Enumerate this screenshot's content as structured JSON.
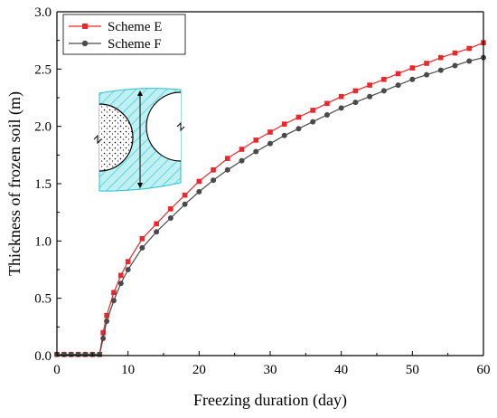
{
  "chart_data": {
    "type": "line",
    "title": "",
    "xlabel": "Freezing duration (day)",
    "ylabel": "Thickness of frozen soil (m)",
    "xlim": [
      0,
      60
    ],
    "ylim": [
      0,
      3.0
    ],
    "xticks": [
      "0",
      "10",
      "20",
      "30",
      "40",
      "50",
      "60"
    ],
    "yticks": [
      "0.0",
      "0.5",
      "1.0",
      "1.5",
      "2.0",
      "2.5",
      "3.0"
    ],
    "grid": false,
    "legend_position": "top-left",
    "series": [
      {
        "name": "Scheme E",
        "color": "#e8282b",
        "marker": "square",
        "x": [
          0,
          1,
          2,
          3,
          4,
          5,
          6,
          6.5,
          7,
          8,
          9,
          10,
          12,
          14,
          16,
          18,
          20,
          22,
          24,
          26,
          28,
          30,
          32,
          34,
          36,
          38,
          40,
          42,
          44,
          46,
          48,
          50,
          52,
          54,
          56,
          58,
          60
        ],
        "values": [
          0.01,
          0.01,
          0.01,
          0.01,
          0.01,
          0.01,
          0.01,
          0.2,
          0.35,
          0.55,
          0.7,
          0.82,
          1.02,
          1.15,
          1.28,
          1.4,
          1.52,
          1.62,
          1.72,
          1.8,
          1.88,
          1.95,
          2.02,
          2.08,
          2.14,
          2.2,
          2.26,
          2.31,
          2.36,
          2.41,
          2.46,
          2.51,
          2.55,
          2.6,
          2.64,
          2.68,
          2.73
        ]
      },
      {
        "name": "Scheme F",
        "color": "#4a4a4a",
        "marker": "circle",
        "x": [
          0,
          1,
          2,
          3,
          4,
          5,
          6,
          6.5,
          7,
          8,
          9,
          10,
          12,
          14,
          16,
          18,
          20,
          22,
          24,
          26,
          28,
          30,
          32,
          34,
          36,
          38,
          40,
          42,
          44,
          46,
          48,
          50,
          52,
          54,
          56,
          58,
          60
        ],
        "values": [
          0.01,
          0.01,
          0.01,
          0.01,
          0.01,
          0.01,
          0.01,
          0.15,
          0.3,
          0.48,
          0.63,
          0.75,
          0.94,
          1.08,
          1.2,
          1.32,
          1.43,
          1.53,
          1.62,
          1.7,
          1.78,
          1.85,
          1.92,
          1.98,
          2.04,
          2.1,
          2.16,
          2.21,
          2.26,
          2.31,
          2.36,
          2.41,
          2.45,
          2.49,
          2.53,
          2.57,
          2.6
        ]
      }
    ]
  },
  "inset": {
    "hatch_color": "#2bbfc9",
    "fill_color": "#bff1f4"
  }
}
